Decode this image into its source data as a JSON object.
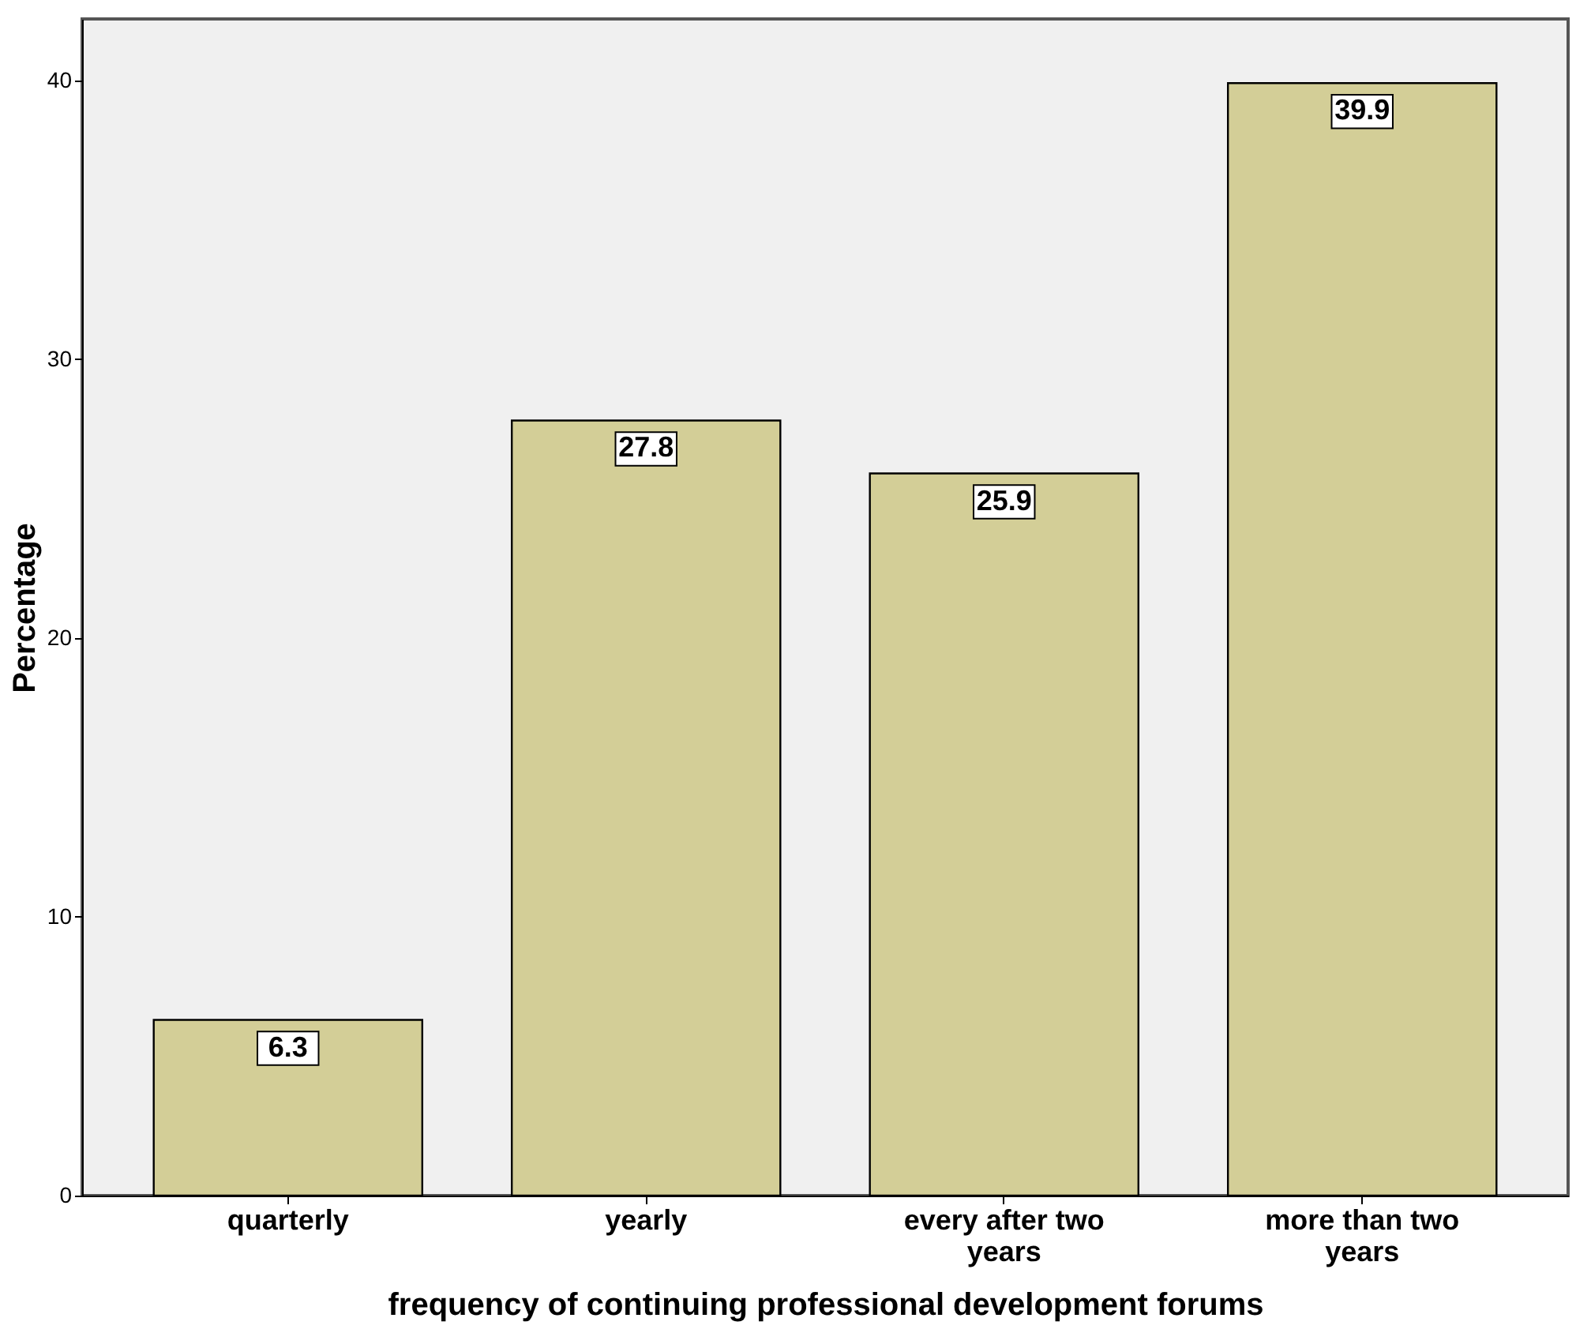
{
  "chart_data": {
    "type": "bar",
    "xlabel": "frequency of continuing professional development forums",
    "ylabel": "Percentage",
    "categories": [
      "quarterly",
      "yearly",
      "every after two years",
      "more than two years"
    ],
    "values": [
      6.3,
      27.8,
      25.9,
      39.9
    ],
    "color": "#d3ce97",
    "ylim": [
      0,
      42.2
    ],
    "yticks": [
      0,
      10,
      20,
      30,
      40
    ],
    "grid": false,
    "data_labels": true
  }
}
